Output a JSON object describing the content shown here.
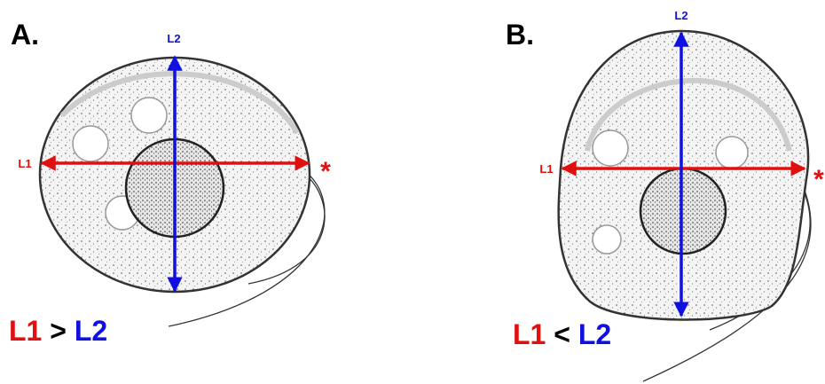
{
  "panels": [
    {
      "label": "A.",
      "horizontal_axis": "L1",
      "vertical_axis": "L2",
      "marker": "*",
      "comparison": {
        "left": "L1",
        "operator": ">",
        "right": "L2"
      }
    },
    {
      "label": "B.",
      "horizontal_axis": "L1",
      "vertical_axis": "L2",
      "marker": "*",
      "comparison": {
        "left": "L1",
        "operator": "<",
        "right": "L2"
      }
    }
  ]
}
